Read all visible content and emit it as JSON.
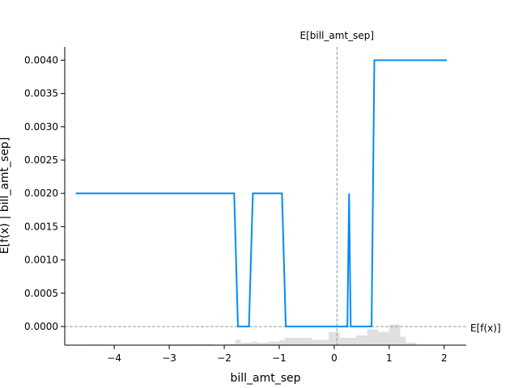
{
  "chart_data": {
    "type": "line",
    "title": "",
    "xlabel": "bill_amt_sep",
    "ylabel": "E[f(x) | bill_amt_sep]",
    "xlim": [
      -4.9,
      2.4
    ],
    "ylim": [
      -0.00028,
      0.0042
    ],
    "xticks": [
      -4,
      -3,
      -2,
      -1,
      0,
      1,
      2
    ],
    "xtick_labels": [
      "−4",
      "−3",
      "−2",
      "−1",
      "0",
      "1",
      "2"
    ],
    "yticks": [
      0,
      0.0005,
      0.001,
      0.0015,
      0.002,
      0.0025,
      0.003,
      0.0035,
      0.004
    ],
    "ytick_labels": [
      "0.0000",
      "0.0005",
      "0.0010",
      "0.0015",
      "0.0020",
      "0.0025",
      "0.0030",
      "0.0035",
      "0.0040"
    ],
    "grid": false,
    "line_color": "#008bfb",
    "series": [
      {
        "x": [
          -4.7,
          -1.82,
          -1.75,
          -1.55,
          -1.48,
          -0.95,
          -0.88,
          0.2,
          0.24,
          0.27,
          0.3,
          0.33,
          0.68,
          0.73,
          2.05
        ],
        "y": [
          0.002,
          0.002,
          0.0,
          0.0,
          0.002,
          0.002,
          0.0,
          0.0,
          0.0,
          0.002,
          0.0,
          0.0,
          0.0,
          0.004,
          0.004
        ]
      }
    ],
    "histogram": {
      "color": "#e0e0e0",
      "bins": [
        {
          "x0": -4.4,
          "x1": -4.2,
          "h": 0.02
        },
        {
          "x0": -3.0,
          "x1": -2.6,
          "h": 0.03
        },
        {
          "x0": -2.6,
          "x1": -2.2,
          "h": 0.04
        },
        {
          "x0": -2.0,
          "x1": -1.9,
          "h": 0.05
        },
        {
          "x0": -1.9,
          "x1": -1.8,
          "h": 0.06
        },
        {
          "x0": -1.8,
          "x1": -1.7,
          "h": 0.22
        },
        {
          "x0": -1.7,
          "x1": -1.5,
          "h": 0.1
        },
        {
          "x0": -1.5,
          "x1": -1.4,
          "h": 0.15
        },
        {
          "x0": -1.4,
          "x1": -1.2,
          "h": 0.1
        },
        {
          "x0": -1.2,
          "x1": -1.0,
          "h": 0.15
        },
        {
          "x0": -1.0,
          "x1": -0.9,
          "h": 0.2
        },
        {
          "x0": -0.9,
          "x1": -0.4,
          "h": 0.3
        },
        {
          "x0": -0.4,
          "x1": -0.1,
          "h": 0.22
        },
        {
          "x0": -0.1,
          "x1": 0.1,
          "h": 0.55
        },
        {
          "x0": 0.1,
          "x1": 0.4,
          "h": 0.3
        },
        {
          "x0": 0.4,
          "x1": 0.6,
          "h": 0.4
        },
        {
          "x0": 0.6,
          "x1": 0.8,
          "h": 0.65
        },
        {
          "x0": 0.8,
          "x1": 1.0,
          "h": 0.55
        },
        {
          "x0": 1.0,
          "x1": 1.2,
          "h": 0.85
        },
        {
          "x0": 1.2,
          "x1": 1.3,
          "h": 0.35
        },
        {
          "x0": 1.3,
          "x1": 1.5,
          "h": 0.1
        }
      ]
    },
    "reference_lines": [
      {
        "orientation": "vertical",
        "value": 0.05,
        "label": "E[bill_amt_sep]",
        "style": "dashed",
        "color": "#999999"
      },
      {
        "orientation": "horizontal",
        "value": 0.0,
        "label": "E[f(x)]",
        "style": "dashed",
        "color": "#999999"
      }
    ]
  }
}
